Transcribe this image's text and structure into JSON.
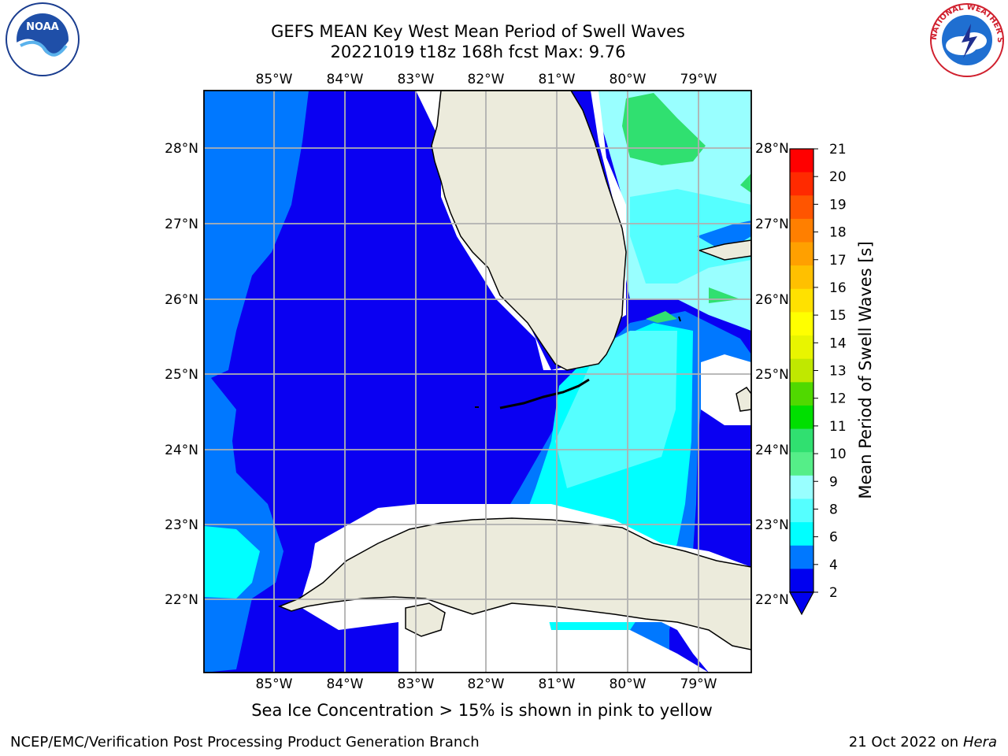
{
  "title": {
    "line1": "GEFS MEAN Key West Mean Period of Swell Waves",
    "line2": "20221019 t18z 168h fcst   Max: 9.76"
  },
  "map": {
    "lon_labels": [
      "85°W",
      "84°W",
      "83°W",
      "82°W",
      "81°W",
      "80°W",
      "79°W"
    ],
    "lat_labels": [
      "28°N",
      "27°N",
      "26°N",
      "25°N",
      "24°N",
      "23°N",
      "22°N"
    ],
    "land_color": "#ecebdc",
    "sea_color_main": "#0a00f2",
    "region": "Florida Keys / Straits of Florida / Northern Cuba"
  },
  "colorbar": {
    "label": "Mean Period of Swell Waves [s]",
    "ticks": [
      "21",
      "20",
      "19",
      "18",
      "17",
      "16",
      "15",
      "14",
      "13",
      "12",
      "11",
      "10",
      "9",
      "8",
      "6",
      "4",
      "2"
    ],
    "colors": [
      "#ff0000",
      "#ff2a00",
      "#ff5500",
      "#ff7f00",
      "#ffa000",
      "#ffc000",
      "#ffe100",
      "#ffff00",
      "#e8f500",
      "#c0e800",
      "#50d900",
      "#00df00",
      "#30e070",
      "#55ee88",
      "#99ffff",
      "#55ffff",
      "#00ffff",
      "#0078ff",
      "#0000f0"
    ]
  },
  "footer": {
    "note": "Sea Ice Concentration > 15% is shown in pink to yellow",
    "credit_left": "NCEP/EMC/Verification Post Processing Product Generation Branch",
    "credit_right_date": "21 Oct 2022 on",
    "credit_right_host": "Hera"
  },
  "logos": {
    "noaa_text": "NOAA",
    "nws_text": "NATIONAL WEATHER SERVICE"
  }
}
